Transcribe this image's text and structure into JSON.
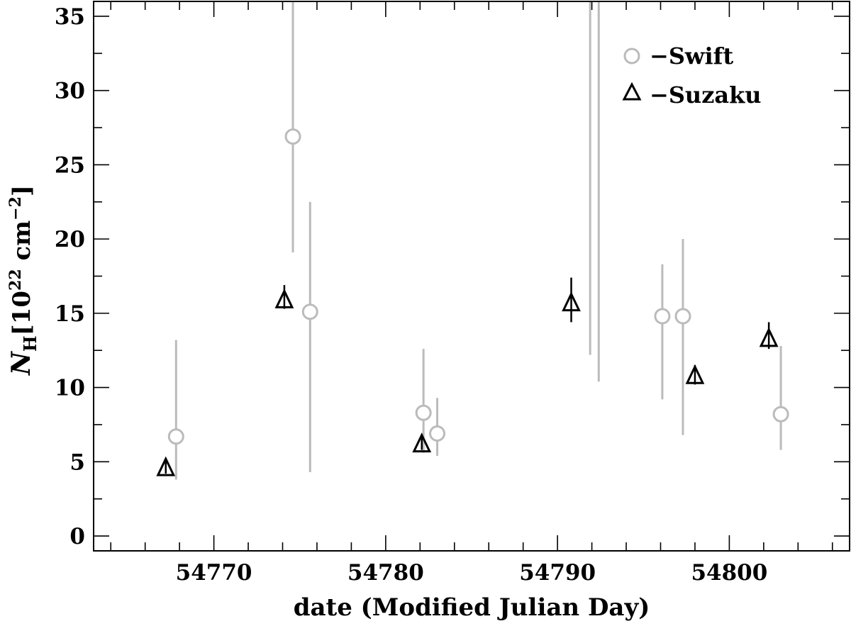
{
  "chart_data": {
    "type": "scatter",
    "title": "",
    "xlabel": "date (Modified Julian Day)",
    "ylabel": {
      "symbol": "N",
      "subscript": "H",
      "open": "[10",
      "exp": "22",
      "unit": " cm",
      "unit_exp": "−2",
      "close": "]"
    },
    "xlim": [
      54763,
      54807
    ],
    "ylim": [
      -1,
      36
    ],
    "x_ticks": [
      54770,
      54780,
      54790,
      54800
    ],
    "x_tick_labels": [
      "54770",
      "54780",
      "54790",
      "54800"
    ],
    "x_minor_step": 2,
    "y_ticks": [
      0,
      5,
      10,
      15,
      20,
      25,
      30,
      35
    ],
    "y_tick_labels": [
      "0",
      "5",
      "10",
      "15",
      "20",
      "25",
      "30",
      "35"
    ],
    "y_minor_step": 2.5,
    "grid": false,
    "legend_position": "top-right",
    "series": [
      {
        "name": "Swift",
        "legend_label": "−Swift",
        "marker": "circle",
        "color": "#bbbbbb",
        "points": [
          {
            "x": 54767.8,
            "y": 6.7,
            "lo": 3.8,
            "hi": 13.2
          },
          {
            "x": 54774.6,
            "y": 26.9,
            "lo": 19.1,
            "hi": 36
          },
          {
            "x": 54775.6,
            "y": 15.1,
            "lo": 4.3,
            "hi": 22.5
          },
          {
            "x": 54782.2,
            "y": 8.3,
            "lo": 5.6,
            "hi": 12.6
          },
          {
            "x": 54783.0,
            "y": 6.9,
            "lo": 5.4,
            "hi": 9.3
          },
          {
            "x": 54791.9,
            "y": null,
            "lo": 12.2,
            "hi": 36
          },
          {
            "x": 54792.4,
            "y": null,
            "lo": 10.4,
            "hi": 36
          },
          {
            "x": 54796.1,
            "y": 14.8,
            "lo": 9.2,
            "hi": 18.3
          },
          {
            "x": 54797.3,
            "y": 14.8,
            "lo": 6.8,
            "hi": 20.0
          },
          {
            "x": 54803.0,
            "y": 8.2,
            "lo": 5.8,
            "hi": 12.8
          }
        ]
      },
      {
        "name": "Suzaku",
        "legend_label": "−Suzaku",
        "marker": "triangle",
        "color": "#000000",
        "points": [
          {
            "x": 54767.2,
            "y": 4.7,
            "lo": 4.2,
            "hi": 5.2
          },
          {
            "x": 54774.1,
            "y": 16.0,
            "lo": 15.3,
            "hi": 16.9
          },
          {
            "x": 54782.1,
            "y": 6.3,
            "lo": 5.8,
            "hi": 6.8
          },
          {
            "x": 54790.8,
            "y": 15.8,
            "lo": 14.4,
            "hi": 17.4
          },
          {
            "x": 54798.0,
            "y": 10.9,
            "lo": 10.2,
            "hi": 11.5
          },
          {
            "x": 54802.3,
            "y": 13.4,
            "lo": 12.6,
            "hi": 14.4
          }
        ]
      }
    ]
  }
}
